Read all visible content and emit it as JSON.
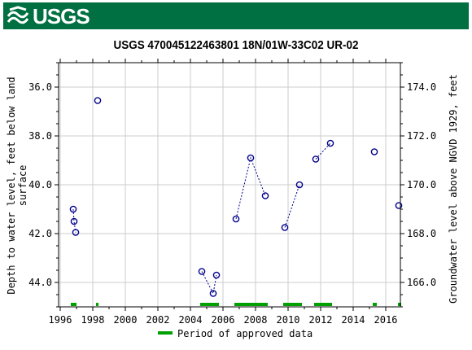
{
  "header": {
    "logo_text": "USGS",
    "logo_icon": "usgs-wave-icon",
    "brand_color": "#006f41"
  },
  "chart_data": {
    "type": "scatter",
    "title": "USGS 470045122463801 18N/01W-33C02 UR-02",
    "ylabel_left_line1": "Depth to water level, feet below land",
    "ylabel_left_line2": "surface",
    "ylabel_right": "Groundwater level above NGVD 1929, feet",
    "xlim": [
      1995.9,
      2016.9
    ],
    "ylim": [
      45.0,
      35.0
    ],
    "ylim_right": [
      165.0,
      175.0
    ],
    "y_reversed": true,
    "x_ticks": [
      1996,
      1998,
      2000,
      2002,
      2004,
      2006,
      2008,
      2010,
      2012,
      2014,
      2016
    ],
    "x_tick_labels": [
      "1996",
      "1998",
      "2000",
      "2002",
      "2004",
      "2006",
      "2008",
      "2010",
      "2012",
      "2014",
      "2016"
    ],
    "y_ticks": [
      36,
      38,
      40,
      42,
      44
    ],
    "y_tick_labels": [
      "36.0",
      "38.0",
      "40.0",
      "42.0",
      "44.0"
    ],
    "y_right_ticks": [
      174,
      172,
      170,
      168,
      166
    ],
    "y_right_tick_labels": [
      "174.0",
      "172.0",
      "170.0",
      "168.0",
      "166.0"
    ],
    "marker_color": "#00008b",
    "segments": [
      [
        {
          "x": 1996.8,
          "y": 41.0
        },
        {
          "x": 1996.85,
          "y": 41.5
        },
        {
          "x": 1996.95,
          "y": 41.95
        }
      ],
      [
        {
          "x": 1998.3,
          "y": 36.55
        }
      ],
      [
        {
          "x": 2004.7,
          "y": 43.55
        },
        {
          "x": 2005.4,
          "y": 44.45
        },
        {
          "x": 2005.6,
          "y": 43.7
        }
      ],
      [
        {
          "x": 2006.8,
          "y": 41.4
        },
        {
          "x": 2007.7,
          "y": 38.9
        },
        {
          "x": 2008.6,
          "y": 40.45
        }
      ],
      [
        {
          "x": 2009.8,
          "y": 41.75
        },
        {
          "x": 2010.7,
          "y": 40.0
        }
      ],
      [
        {
          "x": 2011.7,
          "y": 38.95
        },
        {
          "x": 2012.6,
          "y": 38.3
        }
      ],
      [
        {
          "x": 2015.3,
          "y": 38.65
        }
      ],
      [
        {
          "x": 2016.8,
          "y": 40.85
        }
      ]
    ],
    "approved_periods": [
      [
        1996.65,
        1997.0
      ],
      [
        1998.2,
        1998.35
      ],
      [
        2004.6,
        2005.75
      ],
      [
        2006.7,
        2008.75
      ],
      [
        2009.7,
        2010.85
      ],
      [
        2011.6,
        2012.7
      ],
      [
        2015.2,
        2015.45
      ],
      [
        2016.75,
        2016.95
      ]
    ],
    "approved_color": "#00a000",
    "legend_label": "Period of approved data",
    "legend_position": "bottom-center",
    "grid": true
  }
}
